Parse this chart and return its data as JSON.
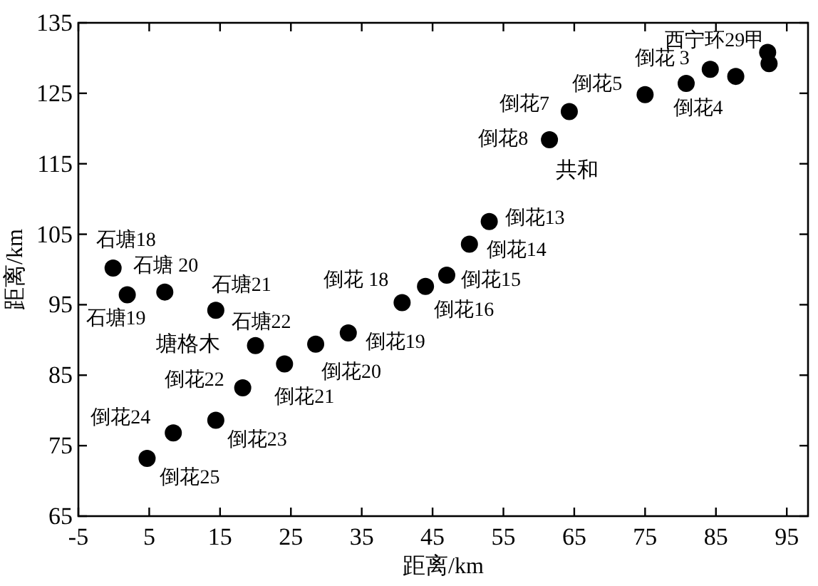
{
  "chart_data": {
    "type": "scatter",
    "xlabel": "距离/km",
    "ylabel": "距离/km",
    "marker": "circle",
    "color": "#000000",
    "grid": false,
    "xlim": [
      -5,
      98
    ],
    "ylim": [
      65,
      135
    ],
    "xticks": [
      -5,
      5,
      15,
      25,
      35,
      45,
      55,
      65,
      75,
      85,
      95
    ],
    "yticks": [
      65,
      75,
      85,
      95,
      105,
      115,
      125,
      135
    ],
    "x": [
      -0.1,
      1.9,
      7.2,
      14.4,
      20.0,
      18.2,
      24.1,
      28.5,
      33.1,
      40.7,
      14.4,
      8.4,
      4.7,
      44.0,
      47.0,
      50.2,
      53.0,
      61.5,
      64.3,
      75.0,
      84.2,
      87.8,
      92.3,
      80.8,
      92.5
    ],
    "values": [
      100.2,
      96.4,
      96.8,
      94.2,
      89.2,
      83.2,
      86.6,
      89.4,
      91.0,
      95.3,
      78.6,
      76.8,
      73.2,
      97.6,
      99.2,
      103.6,
      106.8,
      118.4,
      122.4,
      124.8,
      128.4,
      127.4,
      130.8,
      126.4,
      129.2
    ],
    "annotations": [
      {
        "text": "石塘18",
        "x": -0.1,
        "y": 100.2
      },
      {
        "text": "石塘19",
        "x": 1.9,
        "y": 96.4
      },
      {
        "text": "石塘 20",
        "x": 7.2,
        "y": 96.8
      },
      {
        "text": "石塘21",
        "x": 14.4,
        "y": 94.2
      },
      {
        "text": "石塘22",
        "x": 20.0,
        "y": 89.2
      },
      {
        "text": "倒花22",
        "x": 18.2,
        "y": 83.2
      },
      {
        "text": "倒花21",
        "x": 24.1,
        "y": 86.6
      },
      {
        "text": "倒花20",
        "x": 28.5,
        "y": 89.4
      },
      {
        "text": "倒花19",
        "x": 33.1,
        "y": 91.0
      },
      {
        "text": "倒花 18",
        "x": 40.7,
        "y": 95.3
      },
      {
        "text": "倒花23",
        "x": 14.4,
        "y": 78.6
      },
      {
        "text": "倒花24",
        "x": 8.4,
        "y": 76.8
      },
      {
        "text": "倒花25",
        "x": 4.7,
        "y": 73.2
      },
      {
        "text": "倒花16",
        "x": 44.0,
        "y": 97.6
      },
      {
        "text": "倒花15",
        "x": 47.0,
        "y": 99.2
      },
      {
        "text": "倒花14",
        "x": 50.2,
        "y": 103.6
      },
      {
        "text": "倒花13",
        "x": 53.0,
        "y": 106.8
      },
      {
        "text": "倒花8",
        "x": 61.5,
        "y": 118.4
      },
      {
        "text": "倒花7",
        "x": 64.3,
        "y": 122.4
      },
      {
        "text": "倒花5",
        "x": 75.0,
        "y": 124.8
      },
      {
        "text": "倒花 3",
        "x": 84.2,
        "y": 128.4
      },
      {
        "text": "倒花4",
        "x": 87.8,
        "y": 127.4
      },
      {
        "text": "西宁环29甲",
        "x": 92.3,
        "y": 130.8
      },
      "共和",
      "塘格木"
    ]
  }
}
